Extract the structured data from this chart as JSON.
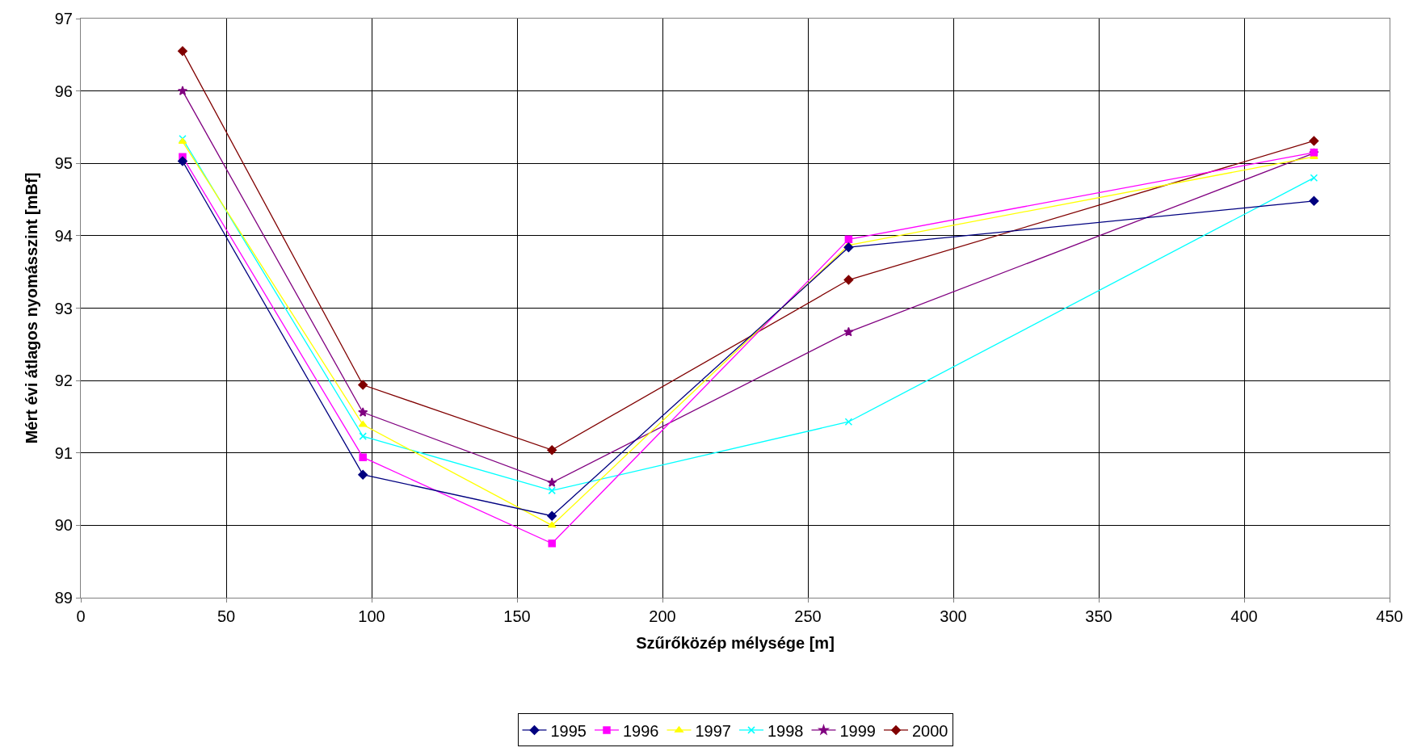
{
  "chart_data": {
    "type": "line",
    "xlabel": "Szűrőközép mélysége [m]",
    "ylabel": "Mért évi átlagos nyomásszint [mBf]",
    "x": [
      35,
      97,
      162,
      264,
      424
    ],
    "series": [
      {
        "name": "1995",
        "color": "#000080",
        "marker": "diamond",
        "values": [
          95.03,
          90.7,
          90.13,
          93.84,
          94.48
        ]
      },
      {
        "name": "1996",
        "color": "#ff00ff",
        "marker": "square",
        "values": [
          95.09,
          90.94,
          89.75,
          93.95,
          95.15
        ]
      },
      {
        "name": "1997",
        "color": "#ffff00",
        "marker": "triangle",
        "values": [
          95.3,
          91.39,
          90.0,
          93.87,
          95.09
        ]
      },
      {
        "name": "1998",
        "color": "#00ffff",
        "marker": "cross",
        "values": [
          95.34,
          91.23,
          90.48,
          91.43,
          94.8
        ]
      },
      {
        "name": "1999",
        "color": "#800080",
        "marker": "star",
        "values": [
          96.0,
          91.56,
          90.59,
          92.67,
          95.14
        ]
      },
      {
        "name": "2000",
        "color": "#800000",
        "marker": "diamond",
        "values": [
          96.55,
          91.94,
          91.04,
          93.39,
          95.31
        ]
      }
    ],
    "xlim": [
      0,
      450
    ],
    "xticks": [
      0,
      50,
      100,
      150,
      200,
      250,
      300,
      350,
      400,
      450
    ],
    "ylim": [
      89,
      97
    ],
    "yticks": [
      89,
      90,
      91,
      92,
      93,
      94,
      95,
      96,
      97
    ],
    "grid": true,
    "legend": "bottom",
    "line_style": "solid"
  }
}
